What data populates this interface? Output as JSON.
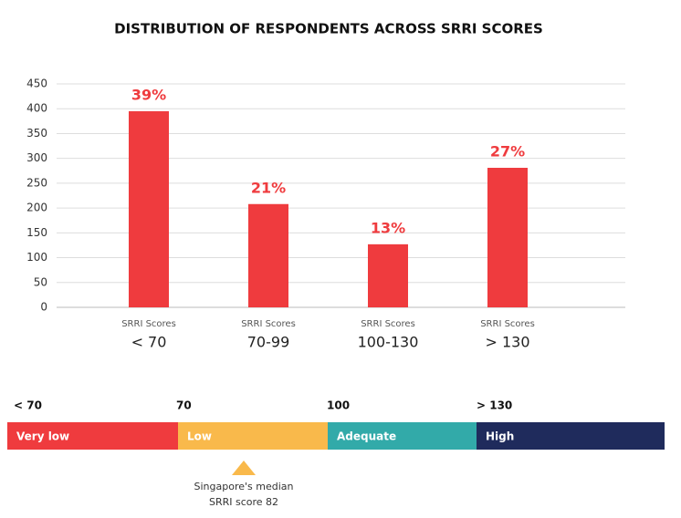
{
  "chart_data": {
    "type": "bar",
    "title": "DISTRIBUTION OF RESPONDENTS ACROSS SRRI SCORES",
    "category_heading": "SRRI Scores",
    "categories": [
      "< 70",
      "70-99",
      "100-130",
      "> 130"
    ],
    "values": [
      395,
      208,
      127,
      281
    ],
    "data_labels": [
      "39%",
      "21%",
      "13%",
      "27%"
    ],
    "color": "#ef3b3e",
    "ylim": [
      0,
      450
    ],
    "yticks": [
      0,
      50,
      100,
      150,
      200,
      250,
      300,
      350,
      400,
      450
    ],
    "grid": true
  },
  "scale": {
    "ticks": [
      "< 70",
      "70",
      "100",
      "> 130"
    ],
    "bands": [
      {
        "label": "Very low",
        "color": "#ef3b3e"
      },
      {
        "label": "Low",
        "color": "#f9b94b"
      },
      {
        "label": "Adequate",
        "color": "#32aaa9"
      },
      {
        "label": "High",
        "color": "#1f2b5c"
      }
    ],
    "marker_lines": [
      "Singapore's median",
      "SRRI score 82"
    ]
  }
}
